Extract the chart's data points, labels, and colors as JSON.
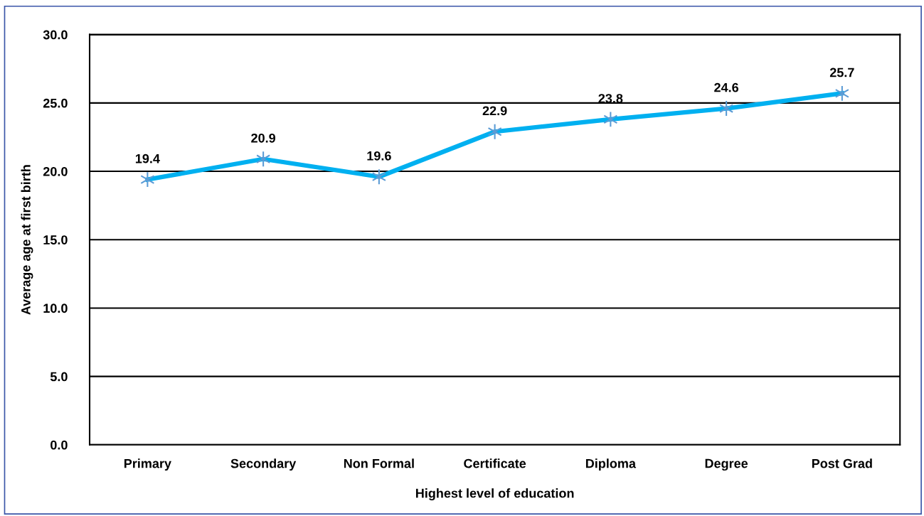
{
  "chart_data": {
    "type": "line",
    "xlabel": "Highest level of education",
    "ylabel": "Average age at first birth",
    "categories": [
      "Primary",
      "Secondary",
      "Non Formal",
      "Certificate",
      "Diploma",
      "Degree",
      "Post Grad"
    ],
    "series": [
      {
        "color": "#00b0f0",
        "values": [
          19.4,
          20.9,
          19.6,
          22.9,
          23.8,
          24.6,
          25.7
        ]
      }
    ],
    "ylim": [
      0,
      30
    ],
    "yticks": [
      {
        "value": 0,
        "label": "0.0"
      },
      {
        "value": 5,
        "label": "5.0"
      },
      {
        "value": 10,
        "label": "10.0"
      },
      {
        "value": 15,
        "label": "15.0"
      },
      {
        "value": 20,
        "label": "20.0"
      },
      {
        "value": 25,
        "label": "25.0"
      },
      {
        "value": 30,
        "label": "30.0"
      }
    ],
    "grid": "y",
    "marker": "cross",
    "line_style": "solid",
    "data_labels": true
  }
}
